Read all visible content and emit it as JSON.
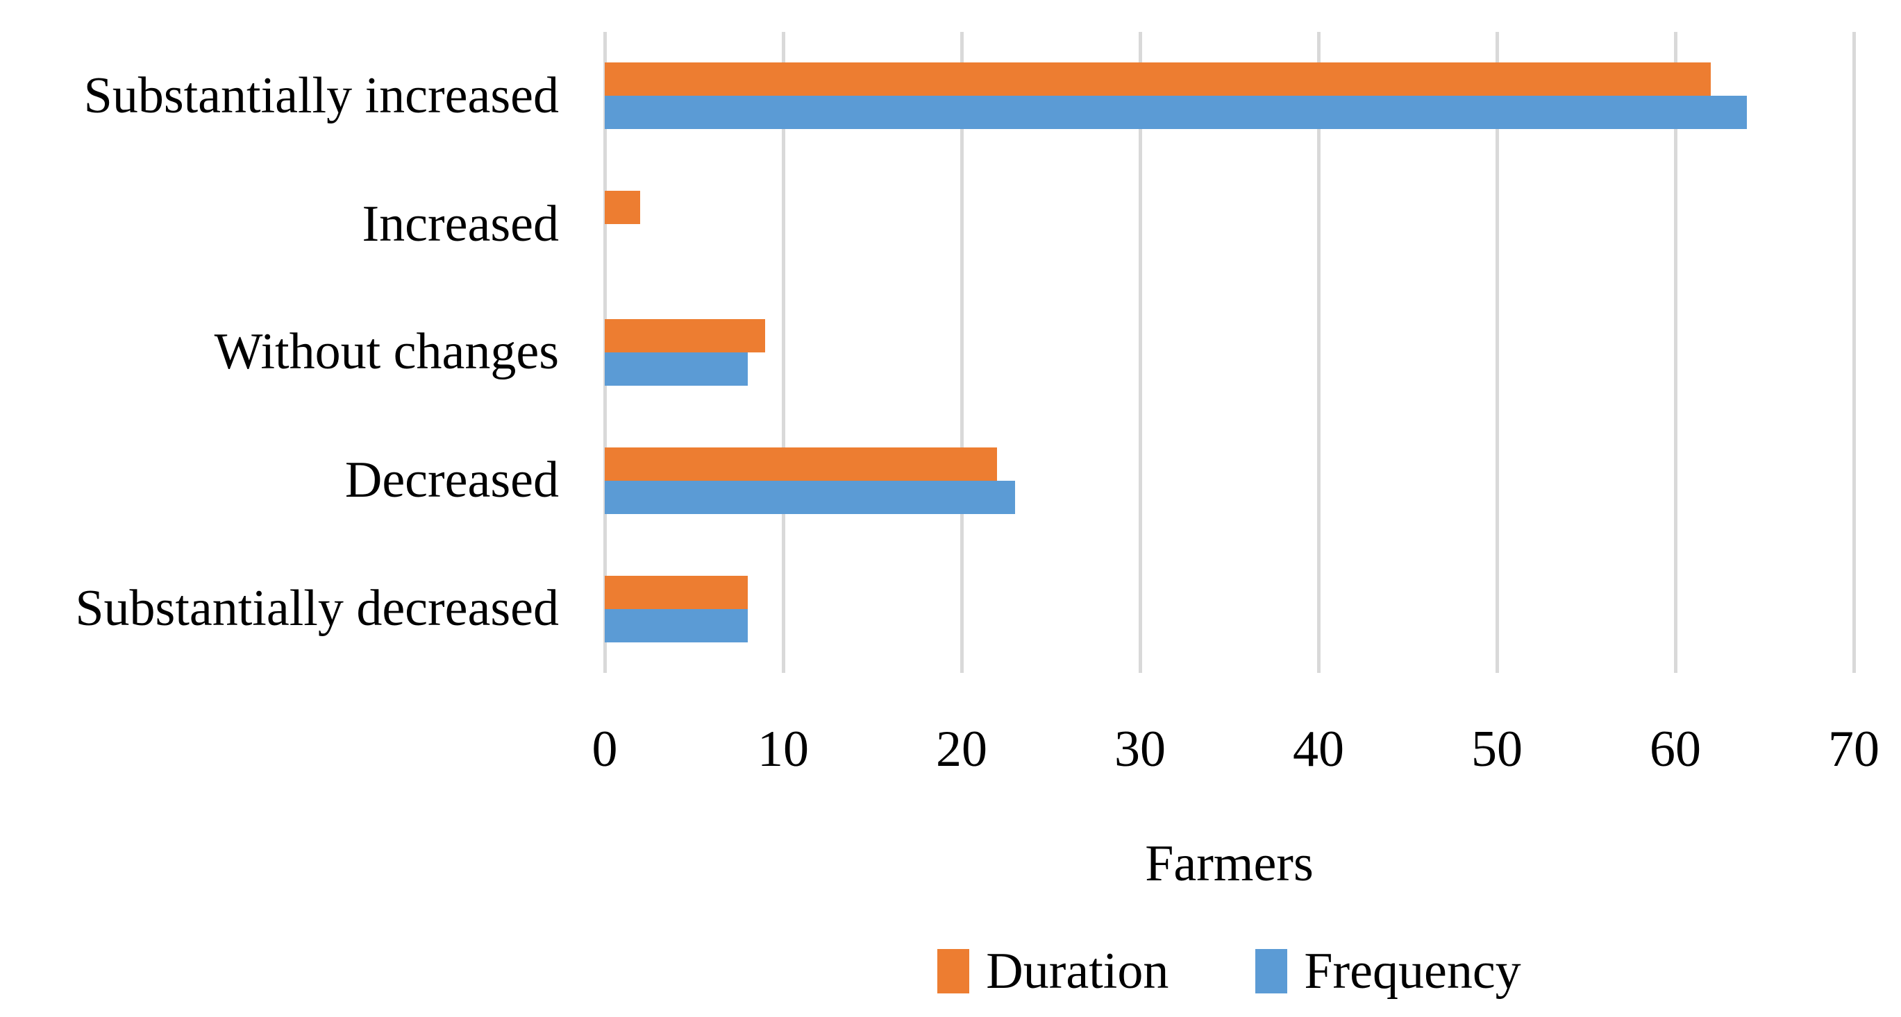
{
  "chart_data": {
    "type": "bar",
    "orientation": "horizontal",
    "title": "",
    "categories": [
      "Substantially increased",
      "Increased",
      "Without changes",
      "Decreased",
      "Substantially decreased"
    ],
    "series": [
      {
        "name": "Duration",
        "color": "#ED7D31",
        "values": [
          62,
          2,
          9,
          22,
          8
        ]
      },
      {
        "name": "Frequency",
        "color": "#5B9BD5",
        "values": [
          64,
          0,
          8,
          23,
          8
        ]
      }
    ],
    "xlabel": "Farmers",
    "ylabel": "",
    "xlim": [
      0,
      70
    ],
    "xticks": [
      0,
      10,
      20,
      30,
      40,
      50,
      60,
      70
    ],
    "grid": "vertical-only",
    "gridline_color": "#D9D9D9",
    "text_color": "#000000",
    "background_color": "#FFFFFF",
    "legend_position": "bottom",
    "bars_per_group_order_top_to_bottom": [
      "Duration",
      "Frequency"
    ]
  }
}
